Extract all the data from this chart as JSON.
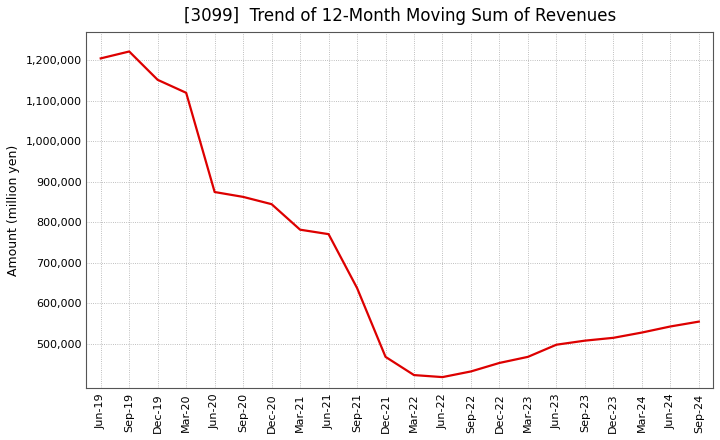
{
  "title": "[3099]  Trend of 12-Month Moving Sum of Revenues",
  "ylabel": "Amount (million yen)",
  "line_color": "#dd0000",
  "background_color": "#ffffff",
  "grid_color": "#aaaaaa",
  "x_labels": [
    "Jun-19",
    "Sep-19",
    "Dec-19",
    "Mar-20",
    "Jun-20",
    "Sep-20",
    "Dec-20",
    "Mar-21",
    "Jun-21",
    "Sep-21",
    "Dec-21",
    "Mar-22",
    "Jun-22",
    "Sep-22",
    "Dec-22",
    "Mar-23",
    "Jun-23",
    "Sep-23",
    "Dec-23",
    "Mar-24",
    "Jun-24",
    "Sep-24"
  ],
  "y_values": [
    1205000,
    1222000,
    1152000,
    1120000,
    875000,
    863000,
    845000,
    782000,
    771000,
    638000,
    468000,
    423000,
    418000,
    432000,
    453000,
    468000,
    498000,
    508000,
    515000,
    528000,
    543000,
    555000
  ],
  "ylim_min": 390000,
  "ylim_max": 1270000,
  "yticks": [
    500000,
    600000,
    700000,
    800000,
    900000,
    1000000,
    1100000,
    1200000
  ],
  "title_fontsize": 12,
  "ylabel_fontsize": 9,
  "tick_fontsize": 8,
  "line_width": 1.6
}
